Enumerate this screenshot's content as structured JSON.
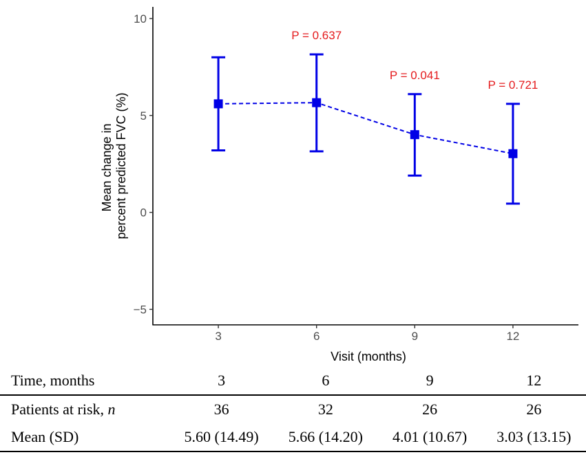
{
  "chart_data": {
    "type": "line",
    "title": "",
    "xlabel": "Visit (months)",
    "ylabel_lines": [
      "Mean change in",
      "percent predicted FVC (%)"
    ],
    "x": [
      3,
      6,
      9,
      12
    ],
    "x_tick_labels": [
      "3",
      "6",
      "9",
      "12"
    ],
    "xlim": [
      1.0,
      14.0
    ],
    "ylim": [
      -5.8,
      10.6
    ],
    "y_ticks": [
      10,
      5,
      0,
      -5
    ],
    "y_tick_labels": [
      "10",
      "5",
      "0",
      "−5"
    ],
    "grid": false,
    "series": [
      {
        "name": "Mean change",
        "mean": [
          5.6,
          5.66,
          4.01,
          3.03
        ],
        "lower": [
          3.2,
          3.15,
          1.9,
          0.45
        ],
        "upper": [
          8.0,
          8.15,
          6.1,
          5.6
        ],
        "line_style": "dashed",
        "marker": "square",
        "color": "#0000e6"
      }
    ],
    "annotations": [
      {
        "x": 6,
        "text": "P = 0.637",
        "color": "#e41a1c"
      },
      {
        "x": 9,
        "text": "P = 0.041",
        "color": "#e41a1c"
      },
      {
        "x": 12,
        "text": "P = 0.721",
        "color": "#e41a1c"
      }
    ]
  },
  "risk_table": {
    "header": {
      "label": "Time, months",
      "values": [
        "3",
        "6",
        "9",
        "12"
      ]
    },
    "at_risk": {
      "label_text": "Patients at risk, ",
      "label_italic": "n",
      "values": [
        "36",
        "32",
        "26",
        "26"
      ]
    },
    "mean_sd": {
      "label": "Mean (SD)",
      "values": [
        "5.60 (14.49)",
        "5.66 (14.20)",
        "4.01 (10.67)",
        "3.03 (13.15)"
      ]
    }
  }
}
